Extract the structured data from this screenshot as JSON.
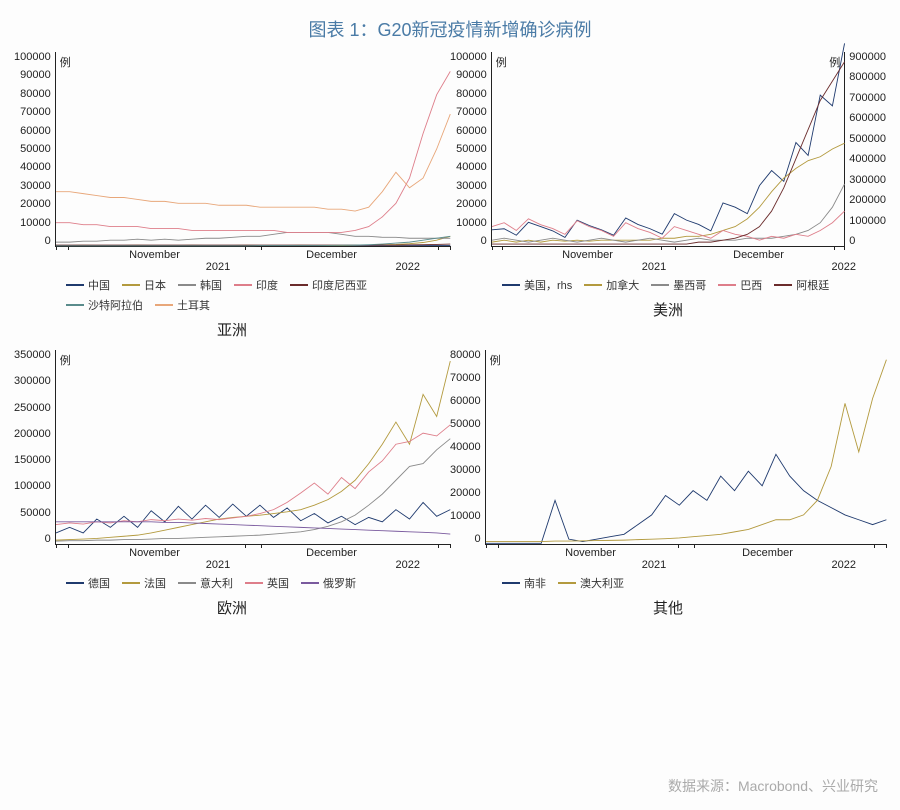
{
  "title_color": "#4a7ba6",
  "title": "图表 1：G20新冠疫情新增确诊病例",
  "source": "数据来源：Macrobond、兴业研究",
  "colors": {
    "navy": "#1f3a6e",
    "olive": "#b39a3e",
    "gray": "#8a8a8a",
    "pink": "#de7e8a",
    "darkred": "#6b2c2c",
    "teal": "#5a8c8c",
    "peach": "#e8a77a",
    "purple": "#7a5a9e"
  },
  "bg": "#fdfdfd",
  "axis_color": "#222222",
  "font_small": 11,
  "font_title": 18,
  "font_sub": 15,
  "panels": {
    "asia": {
      "subtitle": "亚洲",
      "unit": "例",
      "ylim": [
        0,
        100000
      ],
      "yticks": [
        0,
        10000,
        20000,
        30000,
        40000,
        50000,
        60000,
        70000,
        80000,
        90000,
        100000
      ],
      "xmonths": [
        "November",
        "December"
      ],
      "xyears": [
        "2021",
        "2022"
      ],
      "series": [
        {
          "name": "中国",
          "color": "navy",
          "data": [
            0.2,
            0.2,
            0.3,
            0.2,
            0.2,
            0.3,
            0.3,
            0.2,
            0.2,
            0.3,
            0.3,
            0.3,
            0.2,
            0.2,
            0.3,
            0.3,
            0.3,
            0.2,
            0.2,
            0.2,
            0.3,
            0.3,
            0.3,
            0.3,
            0.3,
            0.3,
            0.3,
            0.3,
            0.3,
            0.3
          ]
        },
        {
          "name": "日本",
          "color": "olive",
          "data": [
            0.3,
            0.3,
            0.4,
            0.3,
            0.3,
            0.3,
            0.4,
            0.3,
            0.3,
            0.3,
            0.4,
            0.3,
            0.3,
            0.3,
            0.4,
            0.3,
            0.3,
            0.3,
            0.4,
            0.3,
            0.3,
            0.3,
            0.4,
            0.5,
            0.6,
            0.8,
            1.2,
            1.8,
            3,
            5
          ]
        },
        {
          "name": "韩国",
          "color": "gray",
          "data": [
            2,
            2,
            2.5,
            2.5,
            3,
            3,
            3.5,
            3,
            3.5,
            3,
            3.5,
            4,
            4,
            4.5,
            5,
            5,
            6,
            7,
            7,
            7,
            7,
            6,
            5,
            5,
            4.5,
            4.5,
            4,
            4,
            4,
            4
          ]
        },
        {
          "name": "印度",
          "color": "pink",
          "data": [
            12,
            12,
            11,
            11,
            10,
            10,
            10,
            9,
            9,
            9,
            8,
            8,
            8,
            8,
            8,
            8,
            8,
            7,
            7,
            7,
            7,
            7,
            8,
            10,
            15,
            22,
            35,
            58,
            78,
            90
          ]
        },
        {
          "name": "印度尼西亚",
          "color": "darkred",
          "data": [
            0.5,
            0.5,
            0.5,
            0.5,
            0.5,
            0.5,
            0.5,
            0.5,
            0.5,
            0.5,
            0.5,
            0.5,
            0.5,
            0.5,
            0.5,
            0.5,
            0.5,
            0.5,
            0.5,
            0.5,
            0.5,
            0.5,
            0.5,
            0.5,
            0.5,
            0.5,
            0.6,
            0.7,
            0.8,
            1
          ]
        },
        {
          "name": "沙特阿拉伯",
          "color": "teal",
          "data": [
            0.1,
            0.1,
            0.1,
            0.1,
            0.1,
            0.1,
            0.1,
            0.1,
            0.1,
            0.1,
            0.1,
            0.1,
            0.1,
            0.1,
            0.1,
            0.2,
            0.2,
            0.2,
            0.2,
            0.2,
            0.3,
            0.4,
            0.5,
            0.7,
            1,
            1.5,
            2,
            3,
            4,
            5
          ]
        },
        {
          "name": "土耳其",
          "color": "peach",
          "data": [
            28,
            28,
            27,
            26,
            25,
            25,
            24,
            23,
            23,
            22,
            22,
            22,
            21,
            21,
            21,
            20,
            20,
            20,
            20,
            20,
            19,
            19,
            18,
            20,
            28,
            38,
            30,
            35,
            50,
            68
          ]
        }
      ]
    },
    "americas": {
      "subtitle": "美洲",
      "unit": "例",
      "ylim": [
        0,
        100000
      ],
      "ylim_r": [
        0,
        900000
      ],
      "yticks": [
        0,
        10000,
        20000,
        30000,
        40000,
        50000,
        60000,
        70000,
        80000,
        90000,
        100000
      ],
      "yticks_r": [
        0,
        100000,
        200000,
        300000,
        400000,
        500000,
        600000,
        700000,
        800000,
        900000
      ],
      "xmonths": [
        "November",
        "December"
      ],
      "xyears": [
        "2021",
        "2022"
      ],
      "series": [
        {
          "name": "美国，rhs",
          "color": "navy",
          "rhs": true,
          "data": [
            75,
            80,
            50,
            110,
            90,
            70,
            40,
            120,
            95,
            75,
            50,
            130,
            100,
            80,
            55,
            150,
            120,
            100,
            70,
            200,
            180,
            150,
            280,
            350,
            300,
            480,
            420,
            700,
            650,
            940
          ]
        },
        {
          "name": "加拿大",
          "color": "olive",
          "data": [
            2,
            3,
            2,
            3,
            2,
            3,
            2.5,
            3,
            2.5,
            3,
            3,
            3,
            3,
            3,
            4,
            4,
            5,
            5,
            6,
            8,
            10,
            14,
            20,
            28,
            35,
            40,
            44,
            46,
            50,
            53
          ]
        },
        {
          "name": "墨西哥",
          "color": "gray",
          "data": [
            3,
            4,
            3,
            2,
            3,
            4,
            3,
            2,
            3,
            4,
            3,
            2,
            3,
            4,
            3,
            2,
            3,
            4,
            3,
            3,
            3,
            4,
            4,
            4,
            5,
            6,
            8,
            12,
            20,
            32
          ]
        },
        {
          "name": "巴西",
          "color": "pink",
          "data": [
            10,
            12,
            8,
            14,
            11,
            9,
            6,
            13,
            10,
            8,
            5,
            12,
            9,
            7,
            4,
            10,
            8,
            6,
            4,
            8,
            6,
            5,
            3,
            5,
            4,
            6,
            5,
            8,
            12,
            18
          ]
        },
        {
          "name": "阿根廷",
          "color": "darkred",
          "data": [
            1,
            1,
            1,
            1,
            1,
            1,
            1,
            1,
            1,
            1,
            1,
            1,
            1,
            1,
            1,
            1,
            1,
            2,
            2,
            3,
            4,
            6,
            10,
            18,
            30,
            45,
            60,
            75,
            85,
            95
          ]
        }
      ]
    },
    "europe": {
      "subtitle": "欧洲",
      "unit": "例",
      "ylim": [
        0,
        350000
      ],
      "yticks": [
        0,
        50000,
        100000,
        150000,
        200000,
        250000,
        300000,
        350000
      ],
      "xmonths": [
        "November",
        "December"
      ],
      "xyears": [
        "2021",
        "2022"
      ],
      "series": [
        {
          "name": "德国",
          "color": "navy",
          "data": [
            20,
            30,
            20,
            45,
            30,
            50,
            30,
            60,
            40,
            68,
            45,
            70,
            48,
            72,
            50,
            70,
            48,
            65,
            42,
            55,
            38,
            50,
            35,
            48,
            40,
            62,
            45,
            75,
            50,
            62
          ]
        },
        {
          "name": "法国",
          "color": "olive",
          "data": [
            7,
            8,
            9,
            10,
            12,
            14,
            16,
            20,
            25,
            30,
            35,
            40,
            45,
            48,
            50,
            52,
            55,
            58,
            62,
            70,
            80,
            95,
            115,
            145,
            180,
            220,
            180,
            270,
            230,
            330
          ]
        },
        {
          "name": "意大利",
          "color": "gray",
          "data": [
            5,
            6,
            6,
            7,
            7,
            8,
            8,
            9,
            10,
            10,
            11,
            12,
            13,
            14,
            15,
            16,
            18,
            20,
            22,
            26,
            32,
            40,
            52,
            70,
            90,
            115,
            140,
            145,
            170,
            190
          ]
        },
        {
          "name": "英国",
          "color": "pink",
          "data": [
            35,
            38,
            36,
            40,
            38,
            42,
            40,
            44,
            42,
            45,
            43,
            46,
            44,
            47,
            50,
            55,
            62,
            75,
            92,
            110,
            90,
            120,
            100,
            130,
            150,
            180,
            185,
            200,
            195,
            215
          ]
        },
        {
          "name": "俄罗斯",
          "color": "purple",
          "data": [
            40,
            40,
            40,
            40,
            40,
            40,
            40,
            40,
            39,
            39,
            38,
            37,
            36,
            35,
            34,
            33,
            32,
            31,
            30,
            29,
            28,
            27,
            26,
            25,
            24,
            23,
            22,
            21,
            20,
            18
          ]
        }
      ]
    },
    "other": {
      "subtitle": "其他",
      "unit": "例",
      "ylim": [
        0,
        80000
      ],
      "yticks": [
        0,
        10000,
        20000,
        30000,
        40000,
        50000,
        60000,
        70000,
        80000
      ],
      "xmonths": [
        "November",
        "December"
      ],
      "xyears": [
        "2021",
        "2022"
      ],
      "series": [
        {
          "name": "南非",
          "color": "navy",
          "data": [
            0.3,
            0.3,
            0.3,
            0.3,
            0.3,
            18,
            2,
            1,
            2,
            3,
            4,
            8,
            12,
            20,
            16,
            22,
            18,
            28,
            22,
            30,
            24,
            37,
            28,
            22,
            18,
            15,
            12,
            10,
            8,
            10
          ]
        },
        {
          "name": "澳大利亚",
          "color": "olive",
          "data": [
            1,
            1,
            1,
            1,
            1,
            1.2,
            1.2,
            1.3,
            1.4,
            1.5,
            1.6,
            1.8,
            2,
            2.2,
            2.5,
            3,
            3.5,
            4,
            5,
            6,
            8,
            10,
            10,
            12,
            18,
            32,
            58,
            38,
            60,
            76
          ]
        }
      ]
    }
  }
}
